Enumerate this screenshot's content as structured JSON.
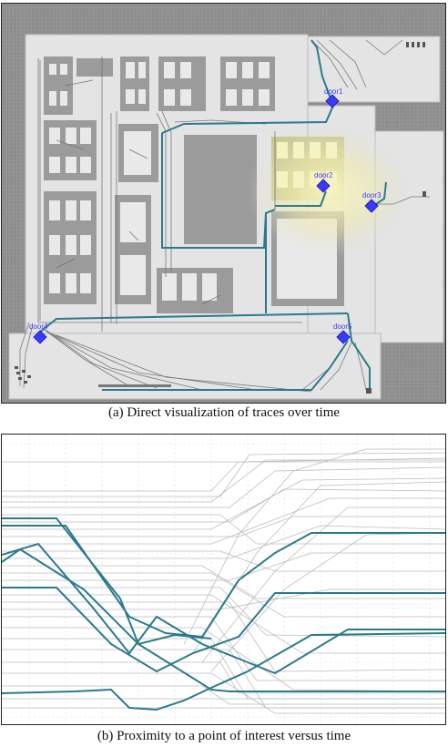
{
  "panel_a": {
    "caption": "(a)  Direct visualization of traces over time",
    "markers": [
      {
        "label": "door1",
        "color": "#3a3aff"
      },
      {
        "label": "door2",
        "color": "#3a3aff"
      },
      {
        "label": "door3",
        "color": "#3a3aff"
      },
      {
        "label": "door4",
        "color": "#3a3aff"
      },
      {
        "label": "door5",
        "color": "#3a3aff"
      }
    ],
    "colors": {
      "floor": "#e6e6e6",
      "wall": "#9a9a9a",
      "trace": "#777777",
      "highlight": "#2b7a8c",
      "glow": "#f4f2b8"
    }
  },
  "panel_b": {
    "caption": "(b)  Proximity to a point of interest versus time",
    "colors": {
      "grey_trace": "#bdbdbd",
      "highlight": "#2b7a8c",
      "grid": "#d9d9d9"
    }
  }
}
